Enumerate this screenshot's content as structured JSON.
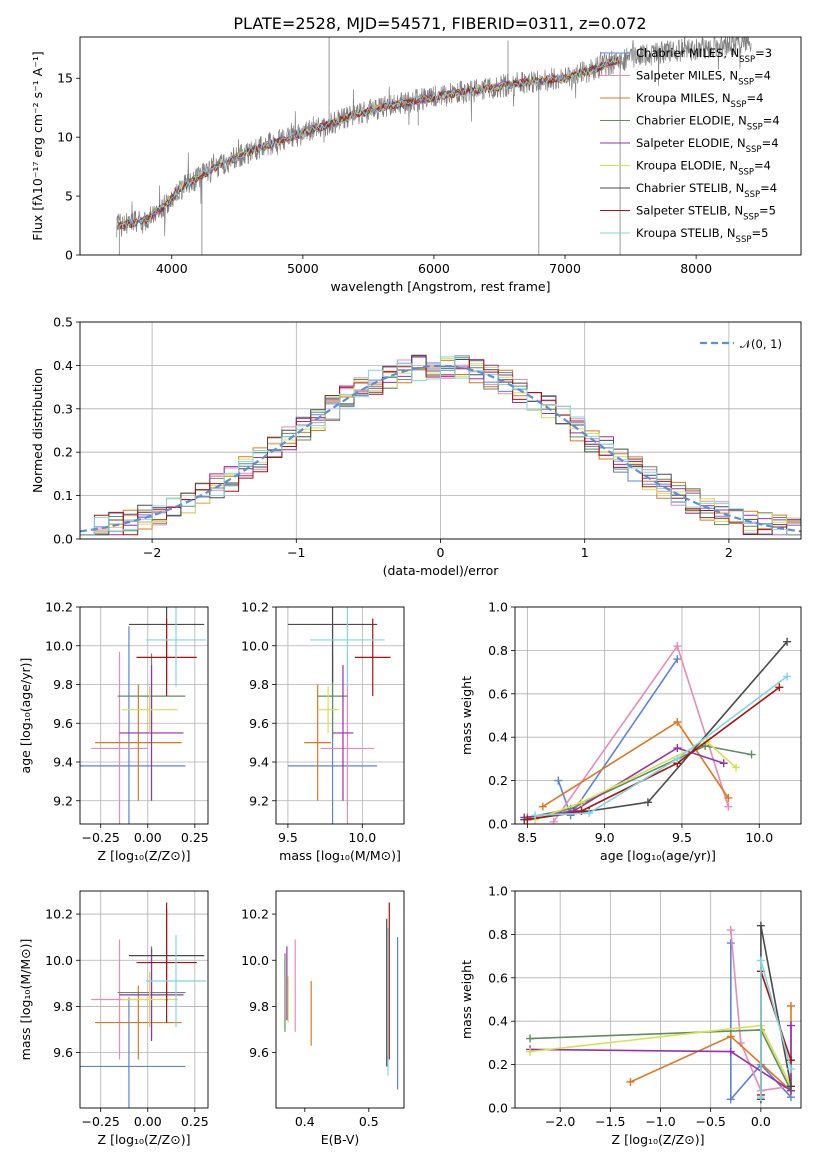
{
  "figure": {
    "title": "PLATE=2528, MJD=54571, FIBERID=0311, z=0.072"
  },
  "models": [
    {
      "key": "chab_miles",
      "name": "Chabrier MILES",
      "nssp": "3",
      "color": "#5b84d6"
    },
    {
      "key": "salp_miles",
      "name": "Salpeter MILES",
      "nssp": "4",
      "color": "#e88bb9"
    },
    {
      "key": "krou_miles",
      "name": "Kroupa MILES",
      "nssp": "4",
      "color": "#e0771f"
    },
    {
      "key": "chab_elod",
      "name": "Chabrier ELODIE",
      "nssp": "4",
      "color": "#5f8d5f"
    },
    {
      "key": "salp_elod",
      "name": "Salpeter ELODIE",
      "nssp": "4",
      "color": "#9a2fb0"
    },
    {
      "key": "krou_elod",
      "name": "Kroupa ELODIE",
      "nssp": "4",
      "color": "#d3e34a"
    },
    {
      "key": "chab_stel",
      "name": "Chabrier STELIB",
      "nssp": "4",
      "color": "#4a4a4a"
    },
    {
      "key": "salp_stel",
      "name": "Salpeter STELIB",
      "nssp": "5",
      "color": "#b01010"
    },
    {
      "key": "krou_stel",
      "name": "Kroupa STELIB",
      "nssp": "5",
      "color": "#7fd8e0"
    }
  ],
  "chart_data": [
    {
      "id": "spectrum",
      "type": "line",
      "title": "PLATE=2528, MJD=54571, FIBERID=0311, z=0.072",
      "xlabel": "wavelength [Angstrom, rest frame]",
      "ylabel": "Flux [fλ10⁻¹⁷ erg cm⁻² s⁻¹ A⁻¹]",
      "xlim": [
        3300,
        8800
      ],
      "ylim": [
        0,
        18.5
      ],
      "xticks": [
        4000,
        5000,
        6000,
        7000,
        8000
      ],
      "yticks": [
        0,
        5,
        10,
        15
      ],
      "grid": false,
      "legend": "upper-right",
      "data_color": "#808080",
      "data_range": [
        3580,
        8420
      ],
      "continuum_nodes": [
        [
          3580,
          2.5
        ],
        [
          3700,
          2.7
        ],
        [
          3800,
          3.0
        ],
        [
          3950,
          4.2
        ],
        [
          4050,
          5.5
        ],
        [
          4200,
          6.6
        ],
        [
          4400,
          7.8
        ],
        [
          4600,
          8.8
        ],
        [
          4800,
          9.6
        ],
        [
          5000,
          10.3
        ],
        [
          5200,
          11.1
        ],
        [
          5400,
          11.9
        ],
        [
          5600,
          12.5
        ],
        [
          5800,
          13.0
        ],
        [
          6000,
          13.4
        ],
        [
          6200,
          13.8
        ],
        [
          6400,
          14.1
        ],
        [
          6600,
          14.5
        ],
        [
          6800,
          14.8
        ],
        [
          7000,
          15.0
        ],
        [
          7200,
          15.7
        ],
        [
          7400,
          16.5
        ],
        [
          7600,
          17.0
        ],
        [
          7800,
          17.2
        ],
        [
          8000,
          17.5
        ],
        [
          8200,
          17.8
        ],
        [
          8420,
          18.0
        ]
      ],
      "spikes": [
        [
          3600,
          0
        ],
        [
          4230,
          0
        ],
        [
          5200,
          18.5
        ],
        [
          5880,
          11.0
        ],
        [
          6280,
          13.8
        ],
        [
          6565,
          18.2
        ],
        [
          6800,
          0
        ],
        [
          7420,
          0
        ]
      ]
    },
    {
      "id": "residuals",
      "type": "histogram",
      "xlabel": "(data-model)/error",
      "ylabel": "Normed distribution",
      "xlim": [
        -2.5,
        2.5
      ],
      "ylim": [
        0,
        0.5
      ],
      "xticks": [
        -2,
        -1,
        0,
        1,
        2
      ],
      "yticks": [
        0.0,
        0.1,
        0.2,
        0.3,
        0.4,
        0.5
      ],
      "grid": true,
      "legend": "upper-right",
      "gaussian_label": "𝒩(0, 1)",
      "gaussian_color": "#5b8fd6",
      "bin_width": 0.1,
      "bin_start": -2.5,
      "base": [
        0.028,
        0.031,
        0.036,
        0.042,
        0.048,
        0.055,
        0.064,
        0.073,
        0.084,
        0.096,
        0.108,
        0.121,
        0.135,
        0.15,
        0.165,
        0.181,
        0.196,
        0.212,
        0.227,
        0.241,
        0.255,
        0.27,
        0.287,
        0.304,
        0.32,
        0.335,
        0.348,
        0.359,
        0.369,
        0.377,
        0.384,
        0.39,
        0.394,
        0.397,
        0.399,
        0.399,
        0.398,
        0.395,
        0.39,
        0.384,
        0.376,
        0.367,
        0.357,
        0.345,
        0.333,
        0.318,
        0.303,
        0.287,
        0.271,
        0.255,
        0.24,
        0.224,
        0.208,
        0.193,
        0.177,
        0.162,
        0.148,
        0.134,
        0.121,
        0.109,
        0.097,
        0.086,
        0.076,
        0.067,
        0.059,
        0.051,
        0.045,
        0.039,
        0.034,
        0.03,
        0.026,
        0.023,
        0.021,
        0.019,
        0.018,
        0.017,
        0.017,
        0.018,
        0.02,
        0.024,
        0.028,
        0.034,
        0.04,
        0.045,
        0.05,
        0.055,
        0.06,
        0.064,
        0.068,
        0.072,
        0.076,
        0.079,
        0.082,
        0.084,
        0.086,
        0.088,
        0.089,
        0.09,
        0.09,
        0.09
      ],
      "noise_seed": 7
    },
    {
      "id": "z_vs_age",
      "type": "errorbar",
      "xlabel": "Z [log₁₀(Z/Z⊙)]",
      "ylabel": "age  [log₁₀(age/yr)]",
      "xlim": [
        -0.36,
        0.32
      ],
      "ylim": [
        9.08,
        10.2
      ],
      "xticks": [
        -0.25,
        0.0,
        0.25
      ],
      "xticklabels": [
        "−0.25",
        "0.00",
        "0.25"
      ],
      "yticks": [
        9.2,
        9.4,
        9.6,
        9.8,
        10.0,
        10.2
      ],
      "grid": true,
      "points": [
        {
          "model": "chab_miles",
          "x": -0.1,
          "xerr": 0.3,
          "y": 9.38,
          "yerr": 0.72
        },
        {
          "model": "salp_miles",
          "x": -0.15,
          "xerr": 0.15,
          "y": 9.47,
          "yerr": 0.5
        },
        {
          "model": "krou_miles",
          "x": -0.05,
          "xerr": 0.23,
          "y": 9.5,
          "yerr": 0.3
        },
        {
          "model": "chab_elod",
          "x": 0.02,
          "xerr": 0.18,
          "y": 9.74,
          "yerr": 0.22
        },
        {
          "model": "salp_elod",
          "x": 0.02,
          "xerr": 0.17,
          "y": 9.55,
          "yerr": 0.35
        },
        {
          "model": "krou_elod",
          "x": 0.01,
          "xerr": 0.15,
          "y": 9.67,
          "yerr": 0.12
        },
        {
          "model": "chab_stel",
          "x": 0.1,
          "xerr": 0.2,
          "y": 10.11,
          "yerr": 0.3
        },
        {
          "model": "salp_stel",
          "x": 0.1,
          "xerr": 0.16,
          "y": 9.94,
          "yerr": 0.2
        },
        {
          "model": "krou_stel",
          "x": 0.15,
          "xerr": 0.16,
          "y": 10.03,
          "yerr": 0.24
        }
      ]
    },
    {
      "id": "mass_vs_age",
      "type": "errorbar",
      "xlabel": "mass [log₁₀(M/M⊙)]",
      "ylabel": "",
      "xlim": [
        9.42,
        10.28
      ],
      "ylim": [
        9.08,
        10.2
      ],
      "xticks": [
        9.5,
        10.0
      ],
      "xticklabels": [
        "9.5",
        "10.0"
      ],
      "yticks": [
        9.2,
        9.4,
        9.6,
        9.8,
        10.0,
        10.2
      ],
      "grid": true,
      "points": [
        {
          "model": "chab_miles",
          "x": 9.8,
          "xerr": 0.3,
          "y": 9.38,
          "yerr": 0.72
        },
        {
          "model": "salp_miles",
          "x": 9.9,
          "xerr": 0.18,
          "y": 9.47,
          "yerr": 0.5
        },
        {
          "model": "krou_miles",
          "x": 9.7,
          "xerr": 0.09,
          "y": 9.5,
          "yerr": 0.3
        },
        {
          "model": "chab_elod",
          "x": 9.8,
          "xerr": 0.1,
          "y": 9.74,
          "yerr": 0.22
        },
        {
          "model": "salp_elod",
          "x": 9.87,
          "xerr": 0.07,
          "y": 9.55,
          "yerr": 0.35
        },
        {
          "model": "krou_elod",
          "x": 9.77,
          "xerr": 0.07,
          "y": 9.67,
          "yerr": 0.12
        },
        {
          "model": "chab_stel",
          "x": 9.8,
          "xerr": 0.3,
          "y": 10.11,
          "yerr": 0.3
        },
        {
          "model": "salp_stel",
          "x": 10.07,
          "xerr": 0.12,
          "y": 9.94,
          "yerr": 0.2
        },
        {
          "model": "krou_stel",
          "x": 9.9,
          "xerr": 0.25,
          "y": 10.03,
          "yerr": 0.24
        }
      ]
    },
    {
      "id": "age_weights",
      "type": "line",
      "xlabel": "age  [log₁₀(age/yr)]",
      "ylabel": "mass weight",
      "xlim": [
        8.42,
        10.27
      ],
      "ylim": [
        0,
        1
      ],
      "xticks": [
        8.5,
        9.0,
        9.5,
        10.0
      ],
      "xticklabels": [
        "8.5",
        "9.0",
        "9.5",
        "10.0"
      ],
      "yticks": [
        0.0,
        0.2,
        0.4,
        0.6,
        0.8,
        1.0
      ],
      "grid": true,
      "series": [
        {
          "model": "chab_miles",
          "x": [
            8.7,
            8.78,
            9.47
          ],
          "y": [
            0.2,
            0.04,
            0.76
          ]
        },
        {
          "model": "salp_miles",
          "x": [
            8.67,
            9.47,
            9.8
          ],
          "y": [
            0.01,
            0.82,
            0.08
          ]
        },
        {
          "model": "krou_miles",
          "x": [
            8.6,
            9.47,
            9.8
          ],
          "y": [
            0.08,
            0.47,
            0.12
          ]
        },
        {
          "model": "chab_elod",
          "x": [
            8.5,
            8.78,
            9.65,
            9.95
          ],
          "y": [
            0.03,
            0.07,
            0.36,
            0.32
          ]
        },
        {
          "model": "salp_elod",
          "x": [
            8.48,
            8.8,
            9.47,
            9.77
          ],
          "y": [
            0.03,
            0.06,
            0.35,
            0.28
          ]
        },
        {
          "model": "krou_elod",
          "x": [
            8.55,
            8.85,
            9.66,
            9.85
          ],
          "y": [
            0.02,
            0.1,
            0.38,
            0.26
          ]
        },
        {
          "model": "chab_stel",
          "x": [
            8.48,
            8.9,
            9.28,
            10.18
          ],
          "y": [
            0.02,
            0.06,
            0.1,
            0.84
          ]
        },
        {
          "model": "salp_stel",
          "x": [
            8.5,
            8.85,
            9.47,
            10.13
          ],
          "y": [
            0.02,
            0.06,
            0.28,
            0.63
          ]
        },
        {
          "model": "krou_stel",
          "x": [
            8.55,
            8.9,
            9.47,
            10.18
          ],
          "y": [
            0.04,
            0.05,
            0.3,
            0.68
          ]
        }
      ]
    },
    {
      "id": "z_vs_mass",
      "type": "errorbar",
      "xlabel": "Z [log₁₀(Z/Z⊙)]",
      "ylabel": "mass [log₁₀(M/M⊙)]",
      "xlim": [
        -0.36,
        0.32
      ],
      "ylim": [
        9.36,
        10.3
      ],
      "xticks": [
        -0.25,
        0.0,
        0.25
      ],
      "xticklabels": [
        "−0.25",
        "0.00",
        "0.25"
      ],
      "yticks": [
        9.6,
        9.8,
        10.0,
        10.2
      ],
      "grid": true,
      "points": [
        {
          "model": "chab_miles",
          "x": -0.1,
          "xerr": 0.3,
          "y": 9.54,
          "yerr": 0.3
        },
        {
          "model": "salp_miles",
          "x": -0.15,
          "xerr": 0.15,
          "y": 9.83,
          "yerr": 0.26
        },
        {
          "model": "krou_miles",
          "x": -0.05,
          "xerr": 0.23,
          "y": 9.73,
          "yerr": 0.16
        },
        {
          "model": "chab_elod",
          "x": 0.02,
          "xerr": 0.18,
          "y": 9.86,
          "yerr": 0.2
        },
        {
          "model": "salp_elod",
          "x": 0.02,
          "xerr": 0.17,
          "y": 9.85,
          "yerr": 0.2
        },
        {
          "model": "krou_elod",
          "x": 0.01,
          "xerr": 0.15,
          "y": 9.83,
          "yerr": 0.12
        },
        {
          "model": "chab_stel",
          "x": 0.1,
          "xerr": 0.2,
          "y": 10.02,
          "yerr": 0.2
        },
        {
          "model": "salp_stel",
          "x": 0.1,
          "xerr": 0.16,
          "y": 9.99,
          "yerr": 0.26
        },
        {
          "model": "krou_stel",
          "x": 0.15,
          "xerr": 0.16,
          "y": 9.91,
          "yerr": 0.2
        }
      ]
    },
    {
      "id": "ebv_vs_mass",
      "type": "errorbar",
      "xlabel": "E(B-V)",
      "ylabel": "",
      "xlim": [
        0.355,
        0.555
      ],
      "ylim": [
        9.36,
        10.3
      ],
      "xticks": [
        0.4,
        0.5
      ],
      "xticklabels": [
        "0.4",
        "0.5"
      ],
      "yticks": [
        9.6,
        9.8,
        10.0,
        10.2
      ],
      "grid": false,
      "points": [
        {
          "model": "chab_miles",
          "x": 0.545,
          "xerr": 0,
          "y": 9.77,
          "yerr": 0.33
        },
        {
          "model": "salp_miles",
          "x": 0.385,
          "xerr": 0,
          "y": 9.89,
          "yerr": 0.2
        },
        {
          "model": "krou_miles",
          "x": 0.41,
          "xerr": 0,
          "y": 9.77,
          "yerr": 0.14
        },
        {
          "model": "chab_elod",
          "x": 0.369,
          "xerr": 0,
          "y": 9.86,
          "yerr": 0.17
        },
        {
          "model": "salp_elod",
          "x": 0.372,
          "xerr": 0,
          "y": 9.9,
          "yerr": 0.16
        },
        {
          "model": "krou_elod",
          "x": 0.374,
          "xerr": 0,
          "y": 9.83,
          "yerr": 0.1
        },
        {
          "model": "chab_stel",
          "x": 0.528,
          "xerr": 0,
          "y": 9.86,
          "yerr": 0.32
        },
        {
          "model": "salp_stel",
          "x": 0.532,
          "xerr": 0,
          "y": 9.91,
          "yerr": 0.34
        },
        {
          "model": "krou_stel",
          "x": 0.53,
          "xerr": 0,
          "y": 9.82,
          "yerr": 0.32
        }
      ]
    },
    {
      "id": "z_weights",
      "type": "line",
      "xlabel": "Z [log₁₀(Z/Z⊙)]",
      "ylabel": "mass weight",
      "xlim": [
        -2.45,
        0.4
      ],
      "ylim": [
        0,
        1
      ],
      "xticks": [
        -2.0,
        -1.5,
        -1.0,
        -0.5,
        0.0
      ],
      "xticklabels": [
        "−2.0",
        "−1.5",
        "−1.0",
        "−0.5",
        "0.0"
      ],
      "yticks": [
        0.0,
        0.2,
        0.4,
        0.6,
        0.8,
        1.0
      ],
      "grid": true,
      "series": [
        {
          "model": "chab_miles",
          "x": [
            -0.3,
            -0.3,
            0.0,
            0.3
          ],
          "y": [
            0.76,
            0.04,
            0.2,
            0.05
          ]
        },
        {
          "model": "salp_miles",
          "x": [
            -0.3,
            -0.2,
            0.0,
            0.3
          ],
          "y": [
            0.82,
            0.3,
            0.08,
            0.1
          ]
        },
        {
          "model": "krou_miles",
          "x": [
            -1.3,
            -0.3,
            0.3,
            0.3
          ],
          "y": [
            0.12,
            0.33,
            0.08,
            0.47
          ]
        },
        {
          "model": "chab_elod",
          "x": [
            -2.3,
            0.0,
            0.3
          ],
          "y": [
            0.32,
            0.36,
            0.08
          ]
        },
        {
          "model": "salp_elod",
          "x": [
            -2.3,
            -0.3,
            0.3,
            0.3
          ],
          "y": [
            0.27,
            0.26,
            0.08,
            0.38
          ]
        },
        {
          "model": "krou_elod",
          "x": [
            -2.3,
            0.0,
            0.3
          ],
          "y": [
            0.26,
            0.38,
            0.1
          ]
        },
        {
          "model": "chab_stel",
          "x": [
            0.0,
            0.0,
            0.3
          ],
          "y": [
            0.04,
            0.84,
            0.1
          ]
        },
        {
          "model": "salp_stel",
          "x": [
            0.0,
            0.0,
            0.3
          ],
          "y": [
            0.06,
            0.63,
            0.22
          ]
        },
        {
          "model": "krou_stel",
          "x": [
            0.0,
            0.0,
            0.3
          ],
          "y": [
            0.05,
            0.68,
            0.18
          ]
        }
      ]
    }
  ]
}
